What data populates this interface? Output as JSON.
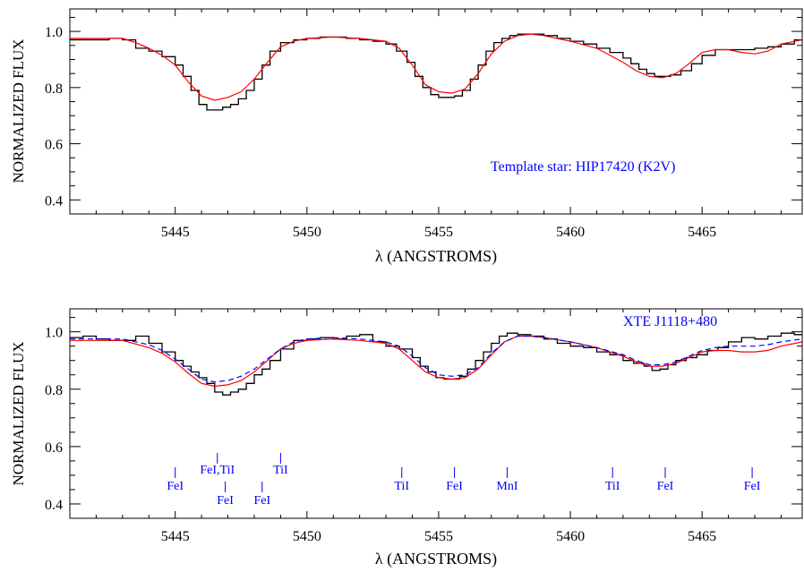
{
  "chart_data": [
    {
      "type": "line",
      "xlabel": "λ  (ANGSTROMS)",
      "ylabel": "NORMALIZED FLUX",
      "xlim": [
        5441.0,
        5468.8
      ],
      "ylim": [
        0.35,
        1.08
      ],
      "xticks": [
        5445,
        5450,
        5455,
        5460,
        5465
      ],
      "xtick_labels": [
        "5445",
        "5450",
        "5455",
        "5460",
        "5465"
      ],
      "yticks": [
        0.4,
        0.6,
        0.8,
        1.0
      ],
      "ytick_labels": [
        "0.4",
        "0.6",
        "0.8",
        "1.0"
      ],
      "annotation": "Template star: HIP17420 (K2V)",
      "colors": {
        "observed": "#000000",
        "model": "#ff0000"
      },
      "series": [
        {
          "style": "histogram",
          "x": [
            5441.0,
            5442.0,
            5442.5,
            5443.0,
            5443.5,
            5444.0,
            5444.5,
            5445.0,
            5445.3,
            5445.6,
            5445.9,
            5446.2,
            5446.5,
            5446.8,
            5447.1,
            5447.4,
            5447.7,
            5448.0,
            5448.3,
            5448.6,
            5449.0,
            5449.5,
            5450.0,
            5450.5,
            5451.0,
            5451.5,
            5452.0,
            5452.5,
            5453.0,
            5453.4,
            5453.8,
            5454.1,
            5454.4,
            5454.7,
            5455.0,
            5455.3,
            5455.6,
            5455.9,
            5456.2,
            5456.5,
            5456.8,
            5457.1,
            5457.4,
            5457.7,
            5458.0,
            5458.5,
            5459.0,
            5459.5,
            5460.0,
            5460.5,
            5461.0,
            5461.5,
            5462.0,
            5462.3,
            5462.6,
            5462.9,
            5463.2,
            5463.5,
            5463.8,
            5464.2,
            5464.6,
            5465.0,
            5465.5,
            5466.0,
            5466.5,
            5467.0,
            5467.5,
            5468.0,
            5468.5
          ],
          "values": [
            0.97,
            0.97,
            0.975,
            0.97,
            0.94,
            0.93,
            0.91,
            0.88,
            0.84,
            0.79,
            0.74,
            0.72,
            0.72,
            0.73,
            0.74,
            0.76,
            0.79,
            0.83,
            0.88,
            0.93,
            0.96,
            0.97,
            0.975,
            0.98,
            0.98,
            0.975,
            0.97,
            0.965,
            0.955,
            0.93,
            0.89,
            0.84,
            0.8,
            0.775,
            0.765,
            0.765,
            0.77,
            0.79,
            0.83,
            0.88,
            0.93,
            0.96,
            0.975,
            0.985,
            0.99,
            0.99,
            0.985,
            0.975,
            0.965,
            0.955,
            0.94,
            0.925,
            0.905,
            0.885,
            0.865,
            0.85,
            0.84,
            0.84,
            0.845,
            0.86,
            0.885,
            0.915,
            0.935,
            0.935,
            0.935,
            0.94,
            0.945,
            0.955,
            0.97
          ]
        },
        {
          "style": "line",
          "x": [
            5441.0,
            5442.0,
            5443.0,
            5443.5,
            5444.0,
            5444.5,
            5445.0,
            5445.5,
            5446.0,
            5446.5,
            5447.0,
            5447.5,
            5448.0,
            5448.5,
            5449.0,
            5449.5,
            5450.0,
            5451.0,
            5452.0,
            5453.0,
            5453.5,
            5454.0,
            5454.5,
            5455.0,
            5455.5,
            5456.0,
            5456.5,
            5457.0,
            5457.5,
            5458.0,
            5458.5,
            5459.0,
            5460.0,
            5461.0,
            5462.0,
            5462.5,
            5463.0,
            5463.5,
            5464.0,
            5464.5,
            5465.0,
            5465.5,
            5466.0,
            5466.5,
            5467.0,
            5467.5,
            5468.0,
            5468.8
          ],
          "values": [
            0.975,
            0.975,
            0.975,
            0.96,
            0.94,
            0.915,
            0.88,
            0.82,
            0.77,
            0.755,
            0.765,
            0.785,
            0.83,
            0.89,
            0.945,
            0.965,
            0.975,
            0.98,
            0.975,
            0.965,
            0.94,
            0.88,
            0.81,
            0.785,
            0.78,
            0.795,
            0.85,
            0.92,
            0.965,
            0.985,
            0.99,
            0.985,
            0.965,
            0.94,
            0.89,
            0.86,
            0.84,
            0.835,
            0.85,
            0.885,
            0.925,
            0.935,
            0.935,
            0.925,
            0.92,
            0.93,
            0.955,
            0.97
          ]
        }
      ]
    },
    {
      "type": "line",
      "xlabel": "λ  (ANGSTROMS)",
      "ylabel": "NORMALIZED FLUX",
      "xlim": [
        5441.0,
        5468.8
      ],
      "ylim": [
        0.35,
        1.08
      ],
      "xticks": [
        5445,
        5450,
        5455,
        5460,
        5465
      ],
      "xtick_labels": [
        "5445",
        "5450",
        "5455",
        "5460",
        "5465"
      ],
      "yticks": [
        0.4,
        0.6,
        0.8,
        1.0
      ],
      "ytick_labels": [
        "0.4",
        "0.6",
        "0.8",
        "1.0"
      ],
      "annotation": "XTE J1118+480",
      "colors": {
        "observed": "#000000",
        "model": "#ff0000",
        "dashed": "#0000ff",
        "line_ids": "#0000ff"
      },
      "series": [
        {
          "style": "histogram",
          "x": [
            5441.0,
            5441.5,
            5442.0,
            5442.5,
            5443.0,
            5443.5,
            5444.0,
            5444.5,
            5445.0,
            5445.3,
            5445.6,
            5445.9,
            5446.2,
            5446.5,
            5446.8,
            5447.1,
            5447.4,
            5447.7,
            5448.0,
            5448.3,
            5448.6,
            5449.0,
            5449.5,
            5450.0,
            5450.5,
            5451.0,
            5451.5,
            5452.0,
            5452.5,
            5453.0,
            5453.5,
            5454.0,
            5454.3,
            5454.6,
            5454.9,
            5455.2,
            5455.5,
            5455.8,
            5456.1,
            5456.4,
            5456.7,
            5457.0,
            5457.3,
            5457.6,
            5458.0,
            5458.5,
            5459.0,
            5459.5,
            5460.0,
            5460.5,
            5461.0,
            5461.5,
            5462.0,
            5462.4,
            5462.8,
            5463.1,
            5463.4,
            5463.7,
            5464.0,
            5464.4,
            5464.8,
            5465.2,
            5465.6,
            5466.0,
            5466.5,
            5467.0,
            5467.5,
            5468.0,
            5468.5
          ],
          "values": [
            0.98,
            0.985,
            0.975,
            0.97,
            0.97,
            0.985,
            0.96,
            0.93,
            0.9,
            0.88,
            0.86,
            0.84,
            0.82,
            0.79,
            0.78,
            0.79,
            0.8,
            0.82,
            0.85,
            0.87,
            0.9,
            0.94,
            0.97,
            0.975,
            0.98,
            0.975,
            0.985,
            0.99,
            0.965,
            0.95,
            0.94,
            0.91,
            0.88,
            0.86,
            0.84,
            0.835,
            0.835,
            0.845,
            0.87,
            0.9,
            0.93,
            0.96,
            0.985,
            0.995,
            0.99,
            0.985,
            0.975,
            0.96,
            0.95,
            0.945,
            0.93,
            0.92,
            0.9,
            0.89,
            0.88,
            0.865,
            0.87,
            0.885,
            0.9,
            0.91,
            0.92,
            0.935,
            0.945,
            0.965,
            0.98,
            0.975,
            0.985,
            0.995,
            0.99
          ]
        },
        {
          "style": "line",
          "x": [
            5441.0,
            5442.0,
            5443.0,
            5444.0,
            5444.5,
            5445.0,
            5445.5,
            5446.0,
            5446.5,
            5447.0,
            5447.5,
            5448.0,
            5448.5,
            5449.0,
            5449.5,
            5450.0,
            5451.0,
            5452.0,
            5453.0,
            5453.5,
            5454.0,
            5454.5,
            5455.0,
            5455.5,
            5456.0,
            5456.5,
            5457.0,
            5457.5,
            5458.0,
            5458.5,
            5459.0,
            5460.0,
            5461.0,
            5462.0,
            5462.5,
            5463.0,
            5463.5,
            5464.0,
            5464.5,
            5465.0,
            5465.5,
            5466.0,
            5466.5,
            5467.0,
            5467.5,
            5468.0,
            5468.8
          ],
          "values": [
            0.97,
            0.97,
            0.97,
            0.945,
            0.925,
            0.895,
            0.855,
            0.82,
            0.81,
            0.815,
            0.83,
            0.86,
            0.9,
            0.94,
            0.96,
            0.97,
            0.975,
            0.97,
            0.96,
            0.94,
            0.9,
            0.86,
            0.84,
            0.835,
            0.84,
            0.87,
            0.92,
            0.965,
            0.985,
            0.985,
            0.98,
            0.965,
            0.945,
            0.915,
            0.895,
            0.88,
            0.88,
            0.89,
            0.91,
            0.93,
            0.935,
            0.935,
            0.93,
            0.93,
            0.935,
            0.95,
            0.965
          ]
        },
        {
          "style": "dashed",
          "x": [
            5441.0,
            5442.0,
            5443.0,
            5444.0,
            5444.5,
            5445.0,
            5445.5,
            5446.0,
            5446.5,
            5447.0,
            5447.5,
            5448.0,
            5448.5,
            5449.0,
            5449.5,
            5450.0,
            5451.0,
            5452.0,
            5453.0,
            5453.5,
            5454.0,
            5454.5,
            5455.0,
            5455.5,
            5456.0,
            5456.5,
            5457.0,
            5457.5,
            5458.0,
            5458.5,
            5459.0,
            5460.0,
            5461.0,
            5462.0,
            5462.5,
            5463.0,
            5463.5,
            5464.0,
            5464.5,
            5465.0,
            5465.5,
            5466.0,
            5466.5,
            5467.0,
            5467.5,
            5468.0,
            5468.8
          ],
          "values": [
            0.975,
            0.975,
            0.975,
            0.955,
            0.935,
            0.905,
            0.87,
            0.835,
            0.825,
            0.83,
            0.845,
            0.87,
            0.905,
            0.94,
            0.965,
            0.975,
            0.98,
            0.975,
            0.965,
            0.95,
            0.915,
            0.875,
            0.85,
            0.845,
            0.85,
            0.875,
            0.925,
            0.965,
            0.985,
            0.985,
            0.98,
            0.965,
            0.945,
            0.92,
            0.9,
            0.885,
            0.885,
            0.895,
            0.915,
            0.935,
            0.945,
            0.95,
            0.95,
            0.95,
            0.955,
            0.965,
            0.975
          ]
        }
      ],
      "line_ids": [
        {
          "label": "FeI",
          "x": 5445.0,
          "row": "low"
        },
        {
          "label": "FeI,TiI",
          "x": 5446.6,
          "row": "high"
        },
        {
          "label": "FeI",
          "x": 5446.9,
          "row": "lower"
        },
        {
          "label": "FeI",
          "x": 5448.3,
          "row": "lower"
        },
        {
          "label": "TiI",
          "x": 5449.0,
          "row": "high"
        },
        {
          "label": "TiI",
          "x": 5453.6,
          "row": "low"
        },
        {
          "label": "FeI",
          "x": 5455.6,
          "row": "low"
        },
        {
          "label": "MnI",
          "x": 5457.6,
          "row": "low"
        },
        {
          "label": "TiI",
          "x": 5461.6,
          "row": "low"
        },
        {
          "label": "FeI",
          "x": 5463.6,
          "row": "low"
        },
        {
          "label": "FeI",
          "x": 5466.9,
          "row": "low"
        }
      ]
    }
  ]
}
